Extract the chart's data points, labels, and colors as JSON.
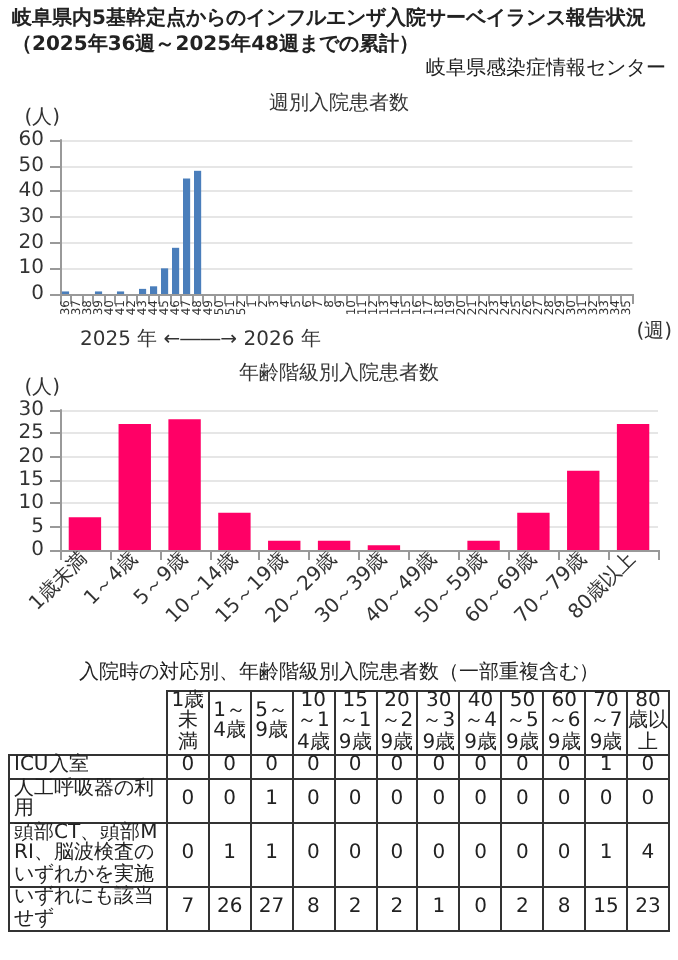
{
  "chart_data": [
    {
      "type": "other",
      "title": "岐阜県内5基幹定点からのインフルエンザ入院サーベイランス報告状況（2025年36週～2025年48週までの累計）",
      "annotations": [
        "岐阜県感染症情報センター"
      ]
    },
    {
      "type": "bar",
      "title": "週別入院患者数",
      "ylabel": "(人)",
      "xlabel": "(週)",
      "annotations": [
        "2025 年 ←――→ 2026 年"
      ],
      "categories": [
        "36",
        "37",
        "38",
        "39",
        "40",
        "41",
        "42",
        "43",
        "44",
        "45",
        "46",
        "47",
        "48",
        "49",
        "50",
        "51",
        "52",
        "1",
        "2",
        "3",
        "4",
        "5",
        "6",
        "7",
        "8",
        "9",
        "10",
        "11",
        "12",
        "13",
        "14",
        "15",
        "16",
        "17",
        "18",
        "19",
        "20",
        "21",
        "22",
        "23",
        "24",
        "25",
        "26",
        "27",
        "28",
        "29",
        "30",
        "31",
        "32",
        "33",
        "34",
        "35"
      ],
      "values": [
        1,
        0,
        0,
        1,
        0,
        1,
        0,
        2,
        3,
        10,
        18,
        45,
        48,
        null,
        null,
        null,
        null,
        null,
        null,
        null,
        null,
        null,
        null,
        null,
        null,
        null,
        null,
        null,
        null,
        null,
        null,
        null,
        null,
        null,
        null,
        null,
        null,
        null,
        null,
        null,
        null,
        null,
        null,
        null,
        null,
        null,
        null,
        null,
        null,
        null,
        null,
        null
      ],
      "color": "#4a7ebb",
      "ylim": [
        0,
        60
      ],
      "yticks": [
        0,
        10,
        20,
        30,
        40,
        50,
        60
      ],
      "grid": "y"
    },
    {
      "type": "bar",
      "title": "年齢階級別入院患者数",
      "ylabel": "(人)",
      "categories": [
        "1歳未満",
        "1～4歳",
        "5～9歳",
        "10～14歳",
        "15～19歳",
        "20～29歳",
        "30～39歳",
        "40～49歳",
        "50～59歳",
        "60～69歳",
        "70～79歳",
        "80歳以上"
      ],
      "values": [
        7,
        27,
        28,
        8,
        2,
        2,
        1,
        0,
        2,
        8,
        17,
        27
      ],
      "color": "#ff0066",
      "ylim": [
        0,
        30
      ],
      "yticks": [
        0,
        5,
        10,
        15,
        20,
        25,
        30
      ],
      "grid": "y"
    },
    {
      "type": "heatmap",
      "data_labels": true,
      "title": "入院時の対応別、年齢階級別入院患者数（一部重複含む）",
      "categories": [
        "1歳未満",
        "1～4歳",
        "5～9歳",
        "10～14歳",
        "15～19歳",
        "20～29歳",
        "30～39歳",
        "40～49歳",
        "50～59歳",
        "60～69歳",
        "70～79歳",
        "80歳以上"
      ],
      "y_categories": [
        "ICU入室",
        "人工呼吸器の利用",
        "頭部CT、頭部MRI、脳波検査のいずれかを実施",
        "いずれにも該当せず"
      ],
      "cells": [
        [
          0,
          0,
          0,
          0,
          0,
          0,
          0,
          0,
          0,
          0,
          1,
          0
        ],
        [
          0,
          0,
          1,
          0,
          0,
          0,
          0,
          0,
          0,
          0,
          0,
          0
        ],
        [
          0,
          1,
          1,
          0,
          0,
          0,
          0,
          0,
          0,
          0,
          1,
          4
        ],
        [
          7,
          26,
          27,
          8,
          2,
          2,
          1,
          0,
          2,
          8,
          15,
          23
        ]
      ]
    }
  ]
}
